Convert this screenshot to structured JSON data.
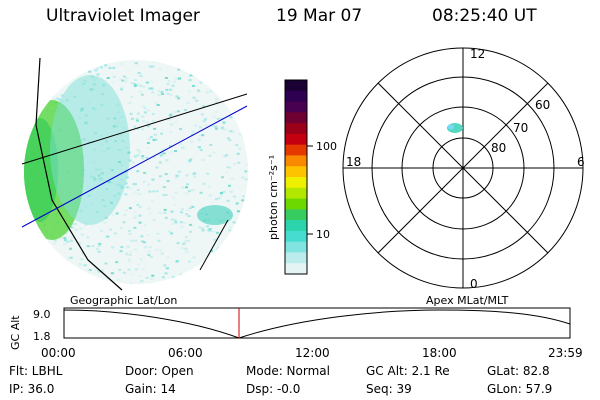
{
  "header": {
    "title": "Ultraviolet Imager",
    "date": "19 Mar 07",
    "time": "08:25:40 UT"
  },
  "colorbar": {
    "label": "photon cm⁻²s⁻¹",
    "ticks": [
      "100",
      "10"
    ],
    "colors": [
      "#1a0033",
      "#2e0052",
      "#480050",
      "#6e0032",
      "#9a0018",
      "#c40010",
      "#e43a00",
      "#f98a00",
      "#fdc200",
      "#eef000",
      "#b2e800",
      "#6cd800",
      "#36cc60",
      "#2cd4ac",
      "#46dcd0",
      "#80e4e0",
      "#bceceb",
      "#e4f4f4"
    ]
  },
  "polar": {
    "labels": [
      "12",
      "60",
      "70",
      "80",
      "18",
      "6",
      "0"
    ]
  },
  "timeline": {
    "left_title": "Geographic Lat/Lon",
    "right_title": "Apex  MLat/MLT",
    "axis_label": "GC Alt",
    "y_top": "9.0",
    "y_bottom": "1.8",
    "x_ticks": [
      "00:00",
      "06:00",
      "12:00",
      "18:00",
      "23:59"
    ]
  },
  "status": {
    "flt": "Flt: LBHL",
    "door": "Door: Open",
    "mode": "Mode: Normal",
    "gcalt": "GC Alt: 2.1 Re",
    "glat": "GLat:  82.8",
    "ip": "IP: 36.0",
    "gain": "Gain: 14",
    "dsp": "Dsp:   -0.0",
    "seq": "Seq: 39",
    "glon": "GLon:  57.9"
  }
}
